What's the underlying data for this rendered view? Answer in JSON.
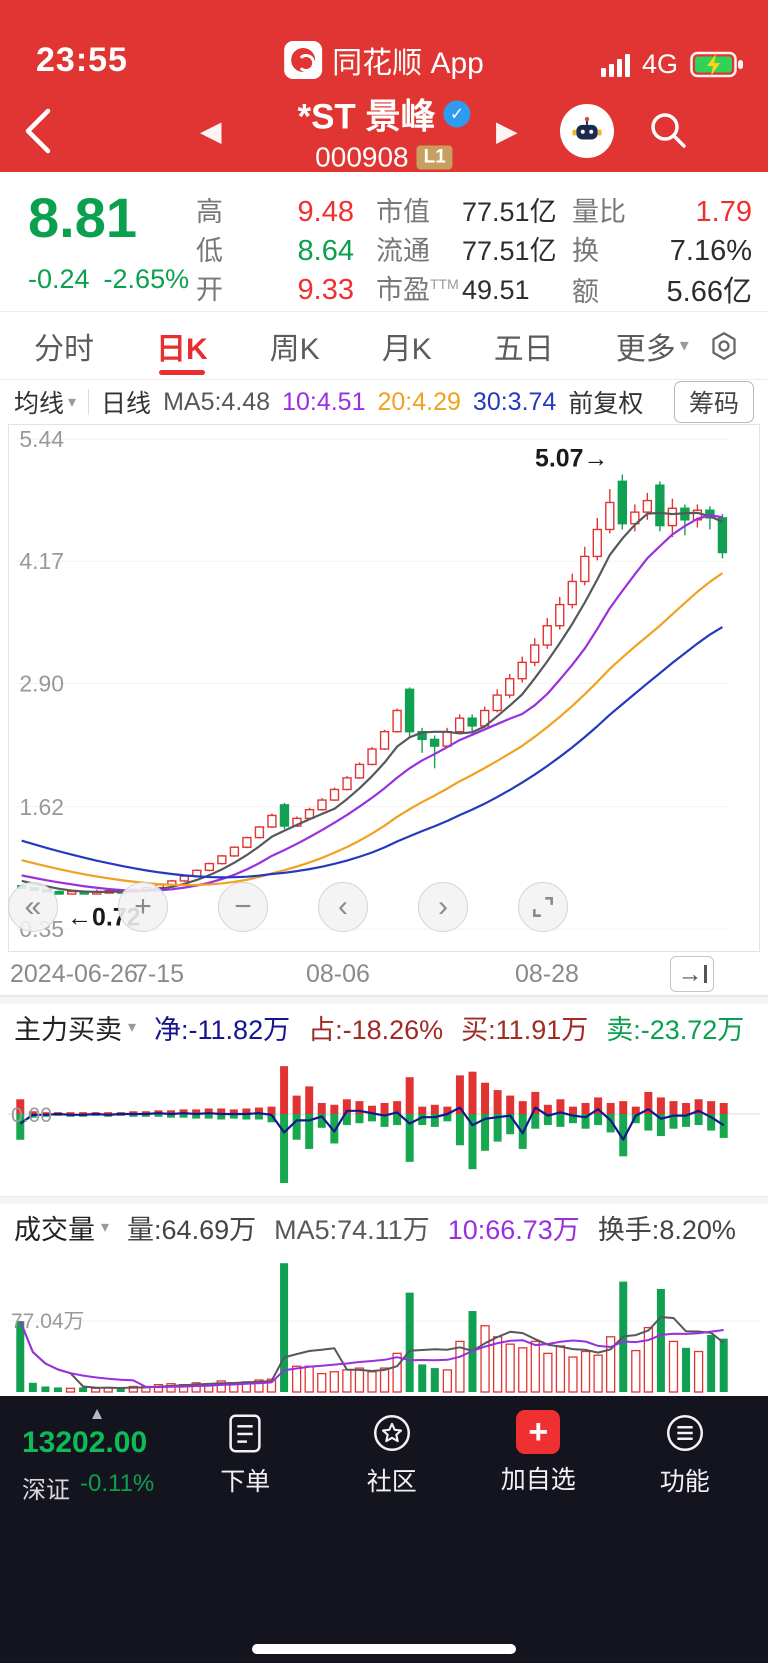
{
  "status_bar": {
    "time": "23:55",
    "app_label": "同花顺 App",
    "network": "4G"
  },
  "header": {
    "title": "*ST 景峰",
    "code": "000908",
    "badge": "L1",
    "verified": "✓"
  },
  "glyphs": {
    "back": "‹",
    "prev": "◀",
    "next": "▶",
    "caret_down": "▾",
    "caret_up": "▲",
    "jump": "→",
    "plus": "+"
  },
  "quote": {
    "price": "8.81",
    "change": "-0.24",
    "change_pct": "-2.65%",
    "col1": [
      {
        "label": "高",
        "value": "9.48"
      },
      {
        "label": "低",
        "value": "8.64"
      },
      {
        "label": "开",
        "value": "9.33"
      }
    ],
    "col2": [
      {
        "label": "市值",
        "sup": "",
        "value": "77.51亿"
      },
      {
        "label": "流通",
        "sup": "",
        "value": "77.51亿"
      },
      {
        "label": "市盈",
        "sup": "TTM",
        "value": "49.51"
      }
    ],
    "col3": [
      {
        "label": "量比",
        "value": "1.79"
      },
      {
        "label": "换",
        "value": "7.16%"
      },
      {
        "label": "额",
        "value": "5.66亿"
      }
    ]
  },
  "tabs": {
    "items": [
      {
        "label": "分时"
      },
      {
        "label": "日K"
      },
      {
        "label": "周K"
      },
      {
        "label": "月K"
      },
      {
        "label": "五日"
      },
      {
        "label": "更多"
      }
    ]
  },
  "ma_toolbar": {
    "dropdown": "均线",
    "period": "日线",
    "ma5": "MA5:4.48",
    "ma10": "10:4.51",
    "ma20": "20:4.29",
    "ma30": "30:3.74",
    "adjust": "前复权",
    "chip_button": "筹码"
  },
  "chart_controls": [
    {
      "name": "pan-left",
      "glyph": "«"
    },
    {
      "name": "zoom-in",
      "glyph": "+"
    },
    {
      "name": "zoom-out",
      "glyph": "−"
    },
    {
      "name": "step-back",
      "glyph": "‹"
    },
    {
      "name": "step-forward",
      "glyph": "›"
    },
    {
      "name": "fullscreen",
      "glyph": ""
    }
  ],
  "x_axis": {
    "ticks": [
      {
        "label": "2024-06-26",
        "pos": 0.013
      },
      {
        "label": "7-15",
        "pos": 0.175
      },
      {
        "label": "08-06",
        "pos": 0.405
      },
      {
        "label": "08-28",
        "pos": 0.682
      }
    ],
    "jump_glyph": "→"
  },
  "main_force_panel": {
    "title": "主力买卖",
    "net": "净:-11.82万",
    "ratio": "占:-18.26%",
    "buy": "买:11.91万",
    "sell": "卖:-23.72万"
  },
  "volume_panel": {
    "title": "成交量",
    "vol": "量:64.69万",
    "ma5": "MA5:74.11万",
    "ma10": "10:66.73万",
    "turnover": "换手:8.20%"
  },
  "bottom_nav": {
    "index_value": "13202.00",
    "index_name": "深证",
    "index_change": "-0.11%",
    "items": [
      {
        "label": "下单"
      },
      {
        "label": "社区"
      },
      {
        "label": "加自选"
      },
      {
        "label": "功能"
      }
    ]
  },
  "chart_data": [
    {
      "type": "candlestick",
      "title": "日K 前复权",
      "ylim": [
        0.35,
        5.44
      ],
      "y_ticks": [
        "5.44",
        "4.17",
        "2.90",
        "1.62",
        "0.35"
      ],
      "max_label": "5.07→",
      "min_label": "←0.72",
      "max_value": 5.07,
      "min_value": 0.72,
      "up_color": "#e23333",
      "down_color": "#11a052",
      "ma_defs": [
        {
          "period": 5,
          "color": "#55585c"
        },
        {
          "period": 10,
          "color": "#9a2fe0"
        },
        {
          "period": 20,
          "color": "#f0a11f"
        },
        {
          "period": 30,
          "color": "#2439bd"
        }
      ],
      "pre_close_history": [
        1.95,
        1.9,
        1.85,
        1.8,
        1.75,
        1.7,
        1.65,
        1.6,
        1.55,
        1.5,
        1.45,
        1.4,
        1.36,
        1.32,
        1.28,
        1.24,
        1.2,
        1.16,
        1.12,
        1.08,
        1.05,
        1.02,
        0.99,
        0.96,
        0.94,
        0.92,
        0.9,
        0.88,
        0.86,
        0.83
      ],
      "candles": [
        [
          0.8,
          0.78,
          0.77,
          0.81
        ],
        [
          0.78,
          0.76,
          0.75,
          0.79
        ],
        [
          0.76,
          0.74,
          0.73,
          0.77
        ],
        [
          0.74,
          0.73,
          0.72,
          0.75
        ],
        [
          0.73,
          0.74,
          0.72,
          0.75
        ],
        [
          0.74,
          0.73,
          0.72,
          0.75
        ],
        [
          0.73,
          0.74,
          0.73,
          0.76
        ],
        [
          0.74,
          0.75,
          0.73,
          0.76
        ],
        [
          0.75,
          0.74,
          0.73,
          0.76
        ],
        [
          0.74,
          0.76,
          0.73,
          0.77
        ],
        [
          0.76,
          0.78,
          0.75,
          0.79
        ],
        [
          0.78,
          0.81,
          0.77,
          0.82
        ],
        [
          0.81,
          0.85,
          0.8,
          0.86
        ],
        [
          0.85,
          0.9,
          0.84,
          0.91
        ],
        [
          0.9,
          0.96,
          0.89,
          0.97
        ],
        [
          0.96,
          1.03,
          0.95,
          1.04
        ],
        [
          1.03,
          1.11,
          1.02,
          1.12
        ],
        [
          1.11,
          1.2,
          1.1,
          1.21
        ],
        [
          1.2,
          1.3,
          1.19,
          1.31
        ],
        [
          1.3,
          1.41,
          1.29,
          1.42
        ],
        [
          1.41,
          1.53,
          1.4,
          1.55
        ],
        [
          1.64,
          1.42,
          1.39,
          1.66
        ],
        [
          1.42,
          1.5,
          1.41,
          1.52
        ],
        [
          1.5,
          1.59,
          1.49,
          1.61
        ],
        [
          1.59,
          1.69,
          1.58,
          1.71
        ],
        [
          1.69,
          1.8,
          1.68,
          1.82
        ],
        [
          1.8,
          1.92,
          1.79,
          1.94
        ],
        [
          1.92,
          2.06,
          1.91,
          2.08
        ],
        [
          2.06,
          2.22,
          2.05,
          2.24
        ],
        [
          2.22,
          2.4,
          2.21,
          2.42
        ],
        [
          2.4,
          2.62,
          2.39,
          2.64
        ],
        [
          2.84,
          2.4,
          2.34,
          2.86
        ],
        [
          2.4,
          2.32,
          2.18,
          2.44
        ],
        [
          2.32,
          2.25,
          2.02,
          2.36
        ],
        [
          2.25,
          2.4,
          2.23,
          2.44
        ],
        [
          2.4,
          2.54,
          2.38,
          2.58
        ],
        [
          2.54,
          2.46,
          2.4,
          2.58
        ],
        [
          2.46,
          2.62,
          2.44,
          2.66
        ],
        [
          2.62,
          2.78,
          2.6,
          2.84
        ],
        [
          2.78,
          2.95,
          2.75,
          3.0
        ],
        [
          2.95,
          3.12,
          2.91,
          3.18
        ],
        [
          3.12,
          3.3,
          3.08,
          3.37
        ],
        [
          3.3,
          3.5,
          3.26,
          3.58
        ],
        [
          3.5,
          3.72,
          3.46,
          3.8
        ],
        [
          3.72,
          3.96,
          3.68,
          4.04
        ],
        [
          3.96,
          4.22,
          3.92,
          4.32
        ],
        [
          4.22,
          4.5,
          4.18,
          4.62
        ],
        [
          4.5,
          4.78,
          4.46,
          4.92
        ],
        [
          5.0,
          4.56,
          4.5,
          5.07
        ],
        [
          4.56,
          4.68,
          4.48,
          4.76
        ],
        [
          4.68,
          4.8,
          4.6,
          4.88
        ],
        [
          4.96,
          4.54,
          4.48,
          5.0
        ],
        [
          4.54,
          4.72,
          4.42,
          4.82
        ],
        [
          4.72,
          4.6,
          4.44,
          4.76
        ],
        [
          4.6,
          4.7,
          4.52,
          4.76
        ],
        [
          4.7,
          4.62,
          4.5,
          4.74
        ],
        [
          4.62,
          4.26,
          4.2,
          4.66
        ]
      ]
    },
    {
      "type": "bar",
      "title": "主力买卖",
      "zero_label": "0.00",
      "bar_up_color": "#e23333",
      "bar_down_color": "#17a84f",
      "line_color": "#15158e",
      "inflow": [
        16,
        3,
        2,
        2,
        2,
        2,
        2,
        2,
        2,
        3,
        3,
        4,
        4,
        5,
        5,
        6,
        6,
        5,
        6,
        7,
        8,
        52,
        20,
        30,
        12,
        10,
        16,
        14,
        9,
        12,
        14,
        40,
        8,
        10,
        8,
        42,
        46,
        34,
        26,
        20,
        14,
        24,
        10,
        16,
        8,
        12,
        18,
        12,
        14,
        8,
        24,
        18,
        14,
        12,
        16,
        14,
        12
      ],
      "outflow": [
        -28,
        -4,
        -3,
        -2,
        -3,
        -3,
        -2,
        -3,
        -2,
        -3,
        -3,
        -3,
        -4,
        -4,
        -5,
        -5,
        -6,
        -5,
        -6,
        -6,
        -9,
        -75,
        -28,
        -38,
        -15,
        -32,
        -12,
        -10,
        -8,
        -14,
        -12,
        -52,
        -12,
        -14,
        -8,
        -34,
        -60,
        -40,
        -30,
        -22,
        -38,
        -16,
        -12,
        -14,
        -10,
        -16,
        -12,
        -20,
        -46,
        -10,
        -18,
        -24,
        -16,
        -14,
        -12,
        -18,
        -26
      ]
    },
    {
      "type": "bar",
      "title": "成交量",
      "grid_label": "77.04万",
      "grid_value": 77.04,
      "ma_defs": [
        {
          "period": 5,
          "color": "#55585c"
        },
        {
          "period": 10,
          "color": "#9a2fe0"
        }
      ],
      "values": [
        77,
        10,
        6,
        5,
        4,
        5,
        4,
        5,
        4,
        6,
        6,
        8,
        9,
        8,
        10,
        9,
        12,
        10,
        11,
        13,
        14,
        140,
        28,
        28,
        20,
        22,
        24,
        26,
        22,
        26,
        42,
        108,
        30,
        26,
        24,
        55,
        88,
        72,
        60,
        52,
        48,
        55,
        42,
        50,
        38,
        44,
        40,
        60,
        120,
        45,
        70,
        112,
        55,
        48,
        44,
        62,
        58
      ]
    }
  ]
}
